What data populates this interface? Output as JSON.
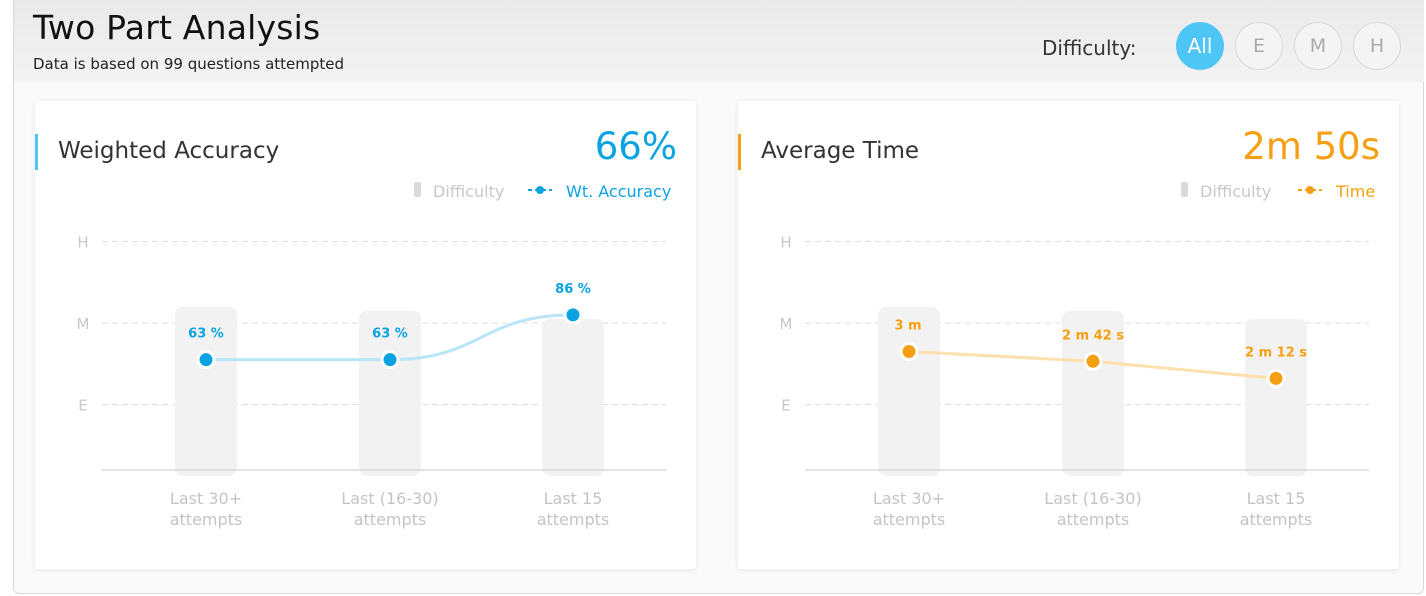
{
  "header": {
    "title": "Two Part Analysis",
    "subtitle": "Data is based on 99 questions attempted",
    "difficulty_label": "Difficulty:",
    "filters": [
      {
        "label": "All",
        "active": true
      },
      {
        "label": "E",
        "active": false
      },
      {
        "label": "M",
        "active": false
      },
      {
        "label": "H",
        "active": false
      }
    ]
  },
  "colors": {
    "accuracy": "#0aa3e2",
    "accuracy_line": "#b8e6f8",
    "time": "#f5a012",
    "time_line": "#fde0ad",
    "difficulty_bar": "#f2f2f2"
  },
  "cards": [
    {
      "title": "Weighted Accuracy",
      "value": "66%",
      "legend": {
        "difficulty": "Difficulty",
        "series": "Wt. Accuracy"
      }
    },
    {
      "title": "Average Time",
      "value": "2m 50s",
      "legend": {
        "difficulty": "Difficulty",
        "series": "Time"
      }
    }
  ],
  "chart_data": [
    {
      "type": "bar+line",
      "title": "Weighted Accuracy",
      "y_ticks": [
        "E",
        "M",
        "H"
      ],
      "categories": [
        [
          "Last 30+",
          "attempts"
        ],
        [
          "Last (16-30)",
          "attempts"
        ],
        [
          "Last 15",
          "attempts"
        ]
      ],
      "difficulty_bars": [
        2.2,
        2.15,
        2.05
      ],
      "series": [
        {
          "name": "Wt. Accuracy",
          "values": [
            63,
            63,
            86
          ],
          "labels": [
            "63 %",
            "63 %",
            "86 %"
          ],
          "levels": [
            1.55,
            1.55,
            2.1
          ]
        }
      ]
    },
    {
      "type": "bar+line",
      "title": "Average Time",
      "y_ticks": [
        "E",
        "M",
        "H"
      ],
      "categories": [
        [
          "Last 30+",
          "attempts"
        ],
        [
          "Last (16-30)",
          "attempts"
        ],
        [
          "Last 15",
          "attempts"
        ]
      ],
      "difficulty_bars": [
        2.2,
        2.15,
        2.05
      ],
      "series": [
        {
          "name": "Time",
          "values": [
            180,
            162,
            132
          ],
          "labels": [
            "3 m",
            "2 m 42 s",
            "2 m 12 s"
          ],
          "levels": [
            1.65,
            1.53,
            1.32
          ]
        }
      ]
    }
  ]
}
